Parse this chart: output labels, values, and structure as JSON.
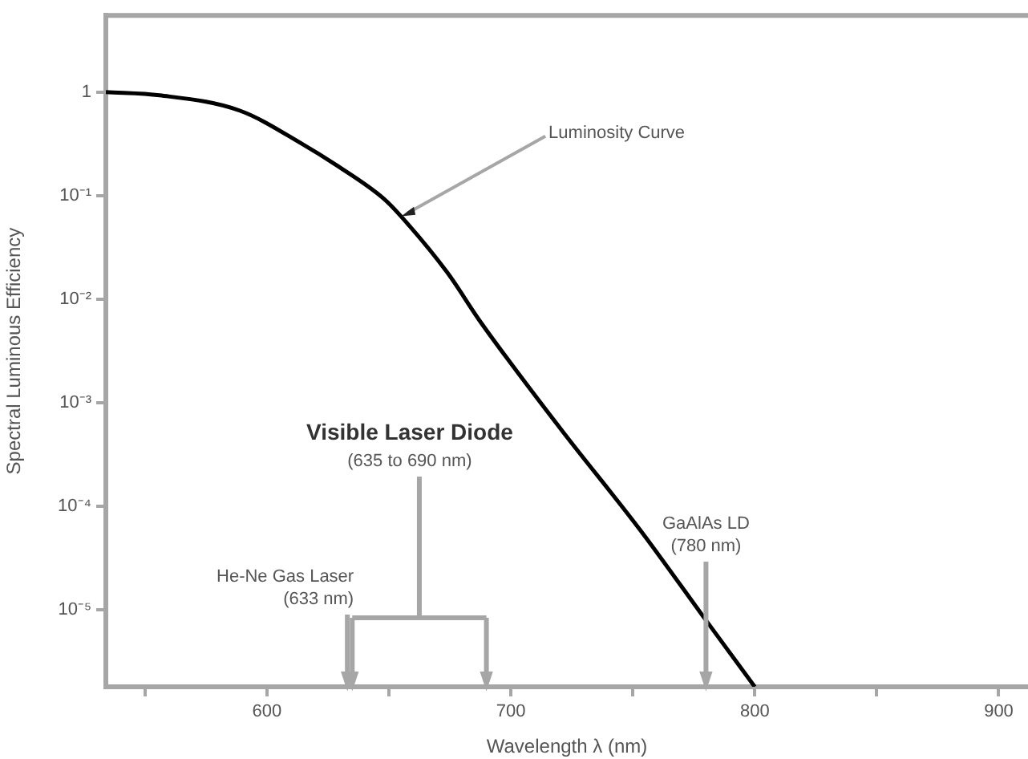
{
  "chart_data": {
    "type": "line",
    "xlabel": "Wavelength λ (nm)",
    "ylabel": "Spectral Luminous Efficiency",
    "log": "y",
    "grid": false,
    "legend": false,
    "marker": "none",
    "line_style": "solid",
    "xlim": [
      534,
      912
    ],
    "xticks": [
      {
        "value": 550,
        "label": null
      },
      600,
      {
        "value": 650,
        "label": null
      },
      700,
      {
        "value": 750,
        "label": null
      },
      800,
      {
        "value": 850,
        "label": null
      },
      900
    ],
    "ylim": [
      1.8e-06,
      5.5
    ],
    "yticks": [
      1,
      {
        "value": 0.1,
        "label": "10⁻¹"
      },
      {
        "value": 0.01,
        "label": "10⁻²"
      },
      {
        "value": 0.001,
        "label": "10⁻³"
      },
      {
        "value": 0.0001,
        "label": "10⁻⁴"
      },
      {
        "value": 1e-05,
        "label": "10⁻⁵"
      }
    ],
    "series": [
      {
        "color": "#000000",
        "x": [
          534,
          556,
          589,
          615,
          628,
          648,
          655,
          674,
          687,
          700,
          722,
          753,
          780,
          800
        ],
        "values": [
          1,
          0.93,
          0.66,
          0.31,
          0.2,
          0.093,
          0.063,
          0.018,
          0.0063,
          0.0024,
          0.0005,
          5.9e-05,
          7.9e-06,
          1.8e-06
        ]
      }
    ],
    "ref_lines": [
      {
        "axis": "x",
        "value": 633,
        "label": "He-Ne Gas Laser (633 nm)"
      },
      {
        "axis": "x",
        "value": 635
      },
      {
        "axis": "x",
        "value": 690
      },
      {
        "axis": "x",
        "value": 780,
        "label": "GaAlAs LD (780 nm)"
      }
    ],
    "annotations": [
      {
        "text": "Luminosity Curve",
        "x": 655,
        "y": 0.063
      },
      "Visible Laser Diode",
      "(635 to 690 nm)"
    ]
  }
}
